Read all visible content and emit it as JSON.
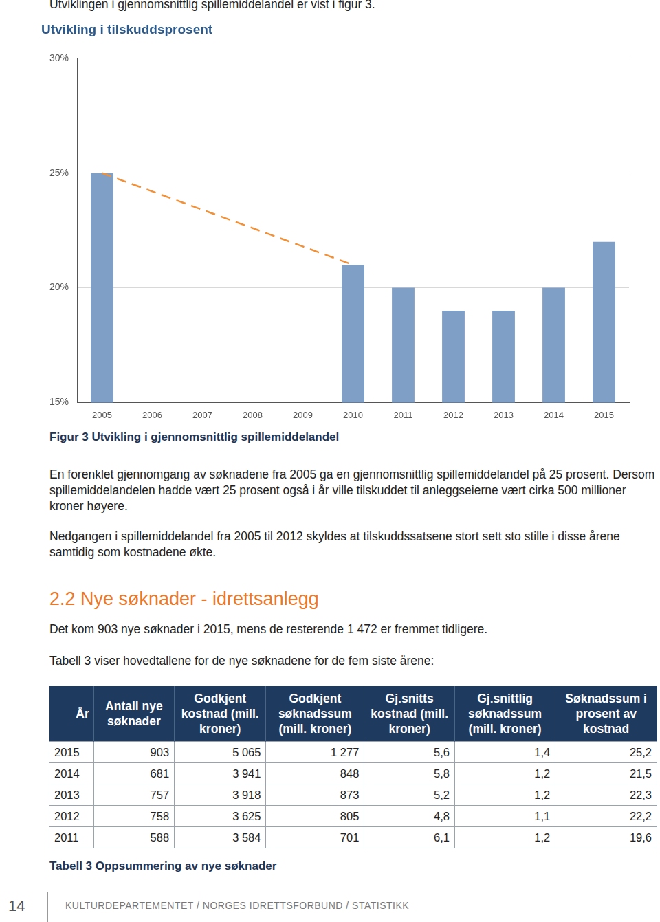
{
  "intro": "Utviklingen i gjennomsnittlig spillemiddelandel er vist i figur 3.",
  "chart_data": {
    "type": "bar",
    "title": "Utvikling i tilskuddsprosent",
    "categories": [
      "2005",
      "2006",
      "2007",
      "2008",
      "2009",
      "2010",
      "2011",
      "2012",
      "2013",
      "2014",
      "2015"
    ],
    "series": [
      {
        "type": "bar",
        "color": "#7f9fc7",
        "values": [
          25,
          null,
          null,
          null,
          null,
          21,
          20,
          19,
          19,
          20,
          22
        ]
      },
      {
        "type": "line",
        "color": "#f0913a",
        "line_style": "dashed",
        "values": [
          25,
          null,
          null,
          null,
          null,
          21,
          null,
          null,
          null,
          null,
          null
        ]
      }
    ],
    "ylim": [
      15,
      30
    ],
    "yticks": [
      {
        "value": 15,
        "label": "15%"
      },
      {
        "value": 20,
        "label": "20%"
      },
      {
        "value": 25,
        "label": "25%"
      },
      {
        "value": 30,
        "label": "30%"
      }
    ],
    "grid": true
  },
  "figure_caption": "Figur 3 Utvikling i gjennomsnittlig spillemiddelandel",
  "paragraphs": [
    "En forenklet gjennomgang av søknadene fra 2005 ga en gjennomsnittlig spillemiddelandel på 25 prosent. Dersom spillemiddelandelen hadde vært 25 prosent også i år ville tilskuddet til anleggseierne vært cirka 500 millioner kroner høyere.",
    "Nedgangen i spillemiddelandel fra 2005 til 2012 skyldes at tilskuddssatsene stort sett sto stille i disse årene samtidig som kostnadene økte."
  ],
  "section_heading": "2.2 Nye søknader - idrettsanlegg",
  "section_paragraphs": [
    "Det kom 903 nye søknader i 2015, mens de resterende 1 472 er fremmet tidligere.",
    "Tabell 3 viser hovedtallene for de nye søknadene for de fem siste årene:"
  ],
  "table": {
    "header": [
      "År",
      "Antall nye søknader",
      "Godkjent kostnad (mill. kroner)",
      "Godkjent søknadssum (mill. kroner)",
      "Gj.snitts kostnad (mill. kroner)",
      "Gj.snittlig søknadssum (mill. kroner)",
      "Søknadssum i prosent av kostnad"
    ],
    "rows": [
      [
        "2015",
        "903",
        "5 065",
        "1 277",
        "5,6",
        "1,4",
        "25,2"
      ],
      [
        "2014",
        "681",
        "3 941",
        "848",
        "5,8",
        "1,2",
        "21,5"
      ],
      [
        "2013",
        "757",
        "3 918",
        "873",
        "5,2",
        "1,2",
        "22,3"
      ],
      [
        "2012",
        "758",
        "3 625",
        "805",
        "4,8",
        "1,1",
        "22,2"
      ],
      [
        "2011",
        "588",
        "3 584",
        "701",
        "6,1",
        "1,2",
        "19,6"
      ]
    ]
  },
  "table_caption": "Tabell 3 Oppsummering av nye søknader",
  "footer": {
    "page": "14",
    "text": "KULTURDEPARTEMENTET / NORGES IDRETTSFORBUND / STATISTIKK"
  }
}
